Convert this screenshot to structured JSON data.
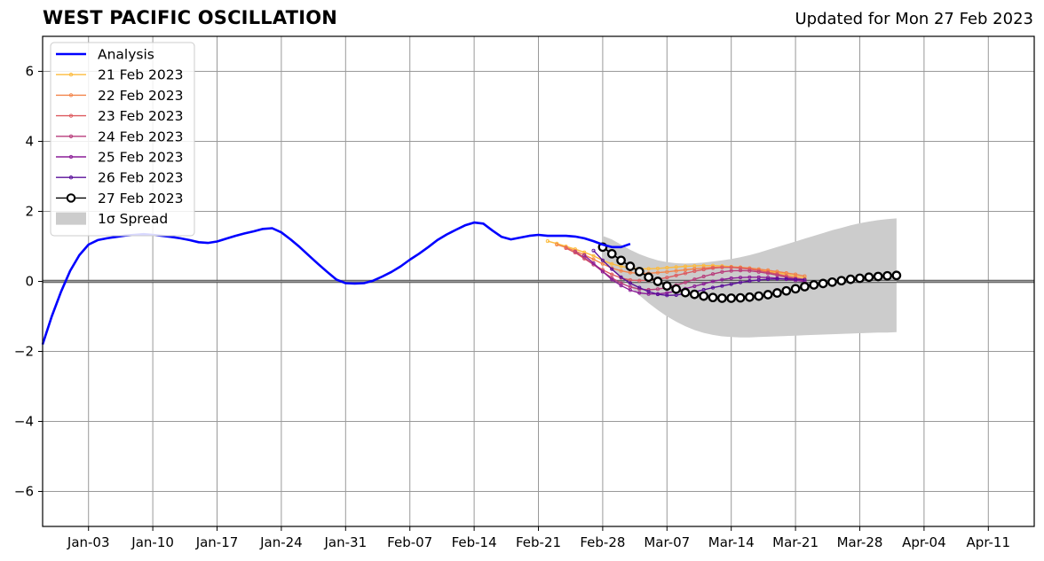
{
  "header": {
    "title": "WEST PACIFIC OSCILLATION",
    "updated": "Updated for Mon 27 Feb 2023"
  },
  "chart_data": {
    "type": "line",
    "title": "WEST PACIFIC OSCILLATION",
    "subtitle": "Updated for Mon 27 Feb 2023",
    "xlabel": "",
    "ylabel": "",
    "x_range": [
      "2022-12-29",
      "2023-04-16"
    ],
    "ylim": [
      -7,
      7
    ],
    "y_ticks": [
      -6,
      -4,
      -2,
      0,
      2,
      4,
      6
    ],
    "y_tick_labels": [
      "−6",
      "−4",
      "−2",
      "0",
      "2",
      "4",
      "6"
    ],
    "x_ticks": [
      "2023-01-03",
      "2023-01-10",
      "2023-01-17",
      "2023-01-24",
      "2023-01-31",
      "2023-02-07",
      "2023-02-14",
      "2023-02-21",
      "2023-02-28",
      "2023-03-07",
      "2023-03-14",
      "2023-03-21",
      "2023-03-28",
      "2023-04-04",
      "2023-04-11"
    ],
    "x_tick_labels": [
      "Jan-03",
      "Jan-10",
      "Jan-17",
      "Jan-24",
      "Jan-31",
      "Feb-07",
      "Feb-14",
      "Feb-21",
      "Feb-28",
      "Mar-07",
      "Mar-14",
      "Mar-21",
      "Mar-28",
      "Apr-04",
      "Apr-11"
    ],
    "grid": true,
    "legend_position": "top-left",
    "colors": {
      "analysis": "#0000ff",
      "spread": "#cccccc",
      "grid": "#999999",
      "zero_line": "#555555"
    },
    "analysis": {
      "name": "Analysis",
      "start_date": "2022-12-29",
      "values": [
        -1.8,
        -1.0,
        -0.3,
        0.3,
        0.75,
        1.05,
        1.18,
        1.23,
        1.27,
        1.31,
        1.33,
        1.35,
        1.33,
        1.3,
        1.27,
        1.23,
        1.18,
        1.12,
        1.1,
        1.14,
        1.22,
        1.3,
        1.37,
        1.43,
        1.5,
        1.52,
        1.4,
        1.2,
        0.98,
        0.74,
        0.5,
        0.27,
        0.05,
        -0.05,
        -0.06,
        -0.05,
        0.02,
        0.14,
        0.27,
        0.43,
        0.62,
        0.79,
        0.98,
        1.18,
        1.34,
        1.47,
        1.6,
        1.68,
        1.65,
        1.45,
        1.27,
        1.2,
        1.25,
        1.3,
        1.33,
        1.3,
        1.3,
        1.3,
        1.28,
        1.23,
        1.15,
        1.05,
        0.98,
        0.98,
        1.07
      ]
    },
    "spread": {
      "name": "1σ Spread",
      "start_date": "2023-02-28",
      "upper": [
        1.3,
        1.2,
        1.05,
        0.9,
        0.78,
        0.68,
        0.6,
        0.55,
        0.52,
        0.51,
        0.52,
        0.54,
        0.57,
        0.6,
        0.64,
        0.69,
        0.75,
        0.82,
        0.9,
        0.98,
        1.06,
        1.14,
        1.22,
        1.3,
        1.38,
        1.46,
        1.53,
        1.6,
        1.66,
        1.71,
        1.75,
        1.78,
        1.8
      ],
      "lower": [
        0.6,
        0.35,
        0.1,
        -0.15,
        -0.4,
        -0.62,
        -0.82,
        -1.0,
        -1.15,
        -1.28,
        -1.39,
        -1.47,
        -1.53,
        -1.57,
        -1.59,
        -1.6,
        -1.6,
        -1.59,
        -1.58,
        -1.57,
        -1.56,
        -1.55,
        -1.54,
        -1.53,
        -1.52,
        -1.51,
        -1.5,
        -1.49,
        -1.48,
        -1.47,
        -1.46,
        -1.46,
        -1.45
      ]
    },
    "series": [
      {
        "name": "21 Feb 2023",
        "color": "#fcbb3e",
        "start_date": "2023-02-22",
        "values": [
          1.15,
          1.08,
          1.0,
          0.92,
          0.83,
          0.73,
          0.6,
          0.5,
          0.43,
          0.38,
          0.36,
          0.36,
          0.37,
          0.39,
          0.41,
          0.43,
          0.44,
          0.45,
          0.45,
          0.44,
          0.42,
          0.4,
          0.37,
          0.33,
          0.29,
          0.25,
          0.2,
          0.15,
          0.1
        ]
      },
      {
        "name": "22 Feb 2023",
        "color": "#f3844a",
        "start_date": "2023-02-23",
        "values": [
          1.05,
          0.97,
          0.87,
          0.76,
          0.63,
          0.5,
          0.38,
          0.3,
          0.25,
          0.23,
          0.23,
          0.25,
          0.27,
          0.3,
          0.33,
          0.36,
          0.38,
          0.4,
          0.41,
          0.41,
          0.4,
          0.38,
          0.35,
          0.32,
          0.28,
          0.24,
          0.2,
          0.15
        ]
      },
      {
        "name": "23 Feb 2023",
        "color": "#dd5a5f",
        "start_date": "2023-02-24",
        "values": [
          0.95,
          0.82,
          0.65,
          0.48,
          0.33,
          0.2,
          0.1,
          0.04,
          0.02,
          0.03,
          0.06,
          0.11,
          0.17,
          0.23,
          0.29,
          0.34,
          0.38,
          0.4,
          0.4,
          0.38,
          0.35,
          0.31,
          0.26,
          0.21,
          0.15,
          0.1,
          0.05
        ]
      },
      {
        "name": "24 Feb 2023",
        "color": "#b83d7c",
        "start_date": "2023-02-25",
        "values": [
          0.85,
          0.68,
          0.48,
          0.28,
          0.1,
          -0.05,
          -0.16,
          -0.22,
          -0.24,
          -0.22,
          -0.18,
          -0.11,
          -0.03,
          0.06,
          0.14,
          0.21,
          0.27,
          0.3,
          0.31,
          0.3,
          0.27,
          0.23,
          0.18,
          0.12,
          0.06,
          0.01
        ]
      },
      {
        "name": "25 Feb 2023",
        "color": "#8c1e97",
        "start_date": "2023-02-26",
        "values": [
          0.75,
          0.52,
          0.28,
          0.05,
          -0.12,
          -0.25,
          -0.33,
          -0.36,
          -0.36,
          -0.33,
          -0.28,
          -0.21,
          -0.14,
          -0.07,
          0.0,
          0.05,
          0.09,
          0.11,
          0.12,
          0.12,
          0.11,
          0.09,
          0.06,
          0.03,
          0.0
        ]
      },
      {
        "name": "26 Feb 2023",
        "color": "#5a0f9a",
        "start_date": "2023-02-27",
        "values": [
          0.88,
          0.6,
          0.35,
          0.12,
          -0.05,
          -0.18,
          -0.29,
          -0.37,
          -0.4,
          -0.39,
          -0.35,
          -0.3,
          -0.24,
          -0.18,
          -0.13,
          -0.08,
          -0.03,
          0.01,
          0.04,
          0.06,
          0.07,
          0.07,
          0.06,
          0.05
        ]
      },
      {
        "name": "27 Feb 2023",
        "color": "#000000",
        "start_date": "2023-02-28",
        "values": [
          0.98,
          0.79,
          0.6,
          0.43,
          0.28,
          0.12,
          0.0,
          -0.13,
          -0.22,
          -0.32,
          -0.37,
          -0.42,
          -0.46,
          -0.48,
          -0.48,
          -0.47,
          -0.45,
          -0.42,
          -0.38,
          -0.33,
          -0.27,
          -0.21,
          -0.15,
          -0.1,
          -0.06,
          -0.02,
          0.02,
          0.06,
          0.09,
          0.12,
          0.14,
          0.16,
          0.17
        ]
      }
    ],
    "legend": [
      "Analysis",
      "21 Feb 2023",
      "22 Feb 2023",
      "23 Feb 2023",
      "24 Feb 2023",
      "25 Feb 2023",
      "26 Feb 2023",
      "27 Feb 2023",
      "1σ Spread"
    ]
  }
}
